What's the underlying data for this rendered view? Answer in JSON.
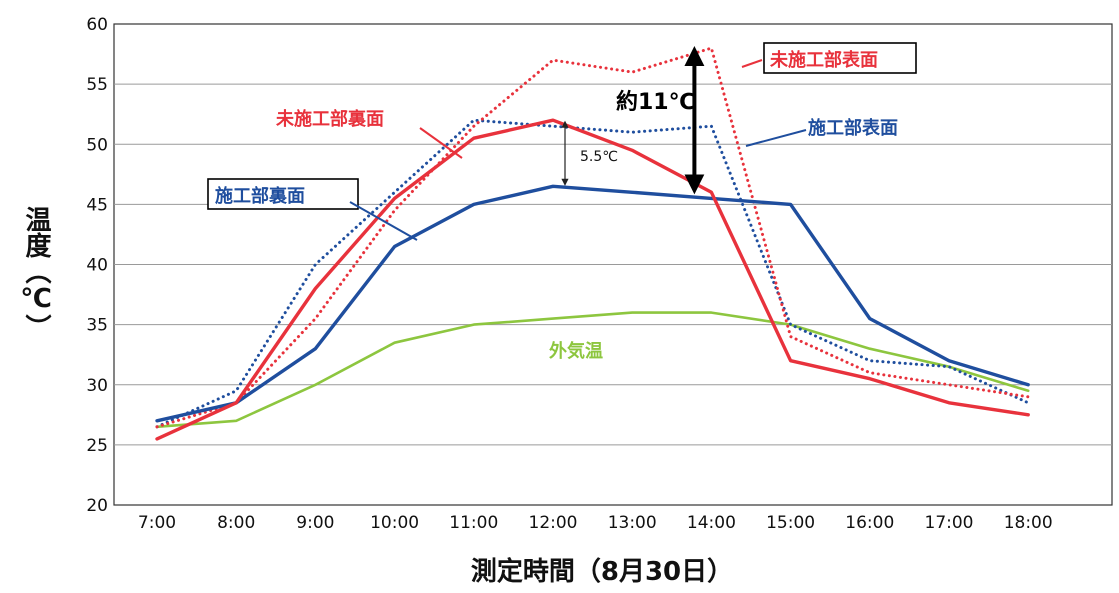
{
  "chart_data": {
    "type": "line",
    "xlabel": "測定時間（8月30日）",
    "ylabel": "温度（℃）",
    "categories": [
      "7:00",
      "8:00",
      "9:00",
      "10:00",
      "11:00",
      "12:00",
      "13:00",
      "14:00",
      "15:00",
      "16:00",
      "17:00",
      "18:00"
    ],
    "ylim": [
      20,
      60
    ],
    "yticks": [
      20,
      25,
      30,
      35,
      40,
      45,
      50,
      55,
      60
    ],
    "grid": true,
    "series": [
      {
        "name": "未施工部表面",
        "color": "#e8323c",
        "style": "dotted",
        "values": [
          26.5,
          28.5,
          35.5,
          44.5,
          51.5,
          57.0,
          56.0,
          58.0,
          34.0,
          31.0,
          30.0,
          29.0
        ]
      },
      {
        "name": "未施工部裏面",
        "color": "#e8323c",
        "style": "solid",
        "values": [
          25.5,
          28.5,
          38.0,
          45.5,
          50.5,
          52.0,
          49.5,
          46.0,
          32.0,
          30.5,
          28.5,
          27.5
        ]
      },
      {
        "name": "施工部表面",
        "color": "#1f4e9e",
        "style": "dotted",
        "values": [
          26.5,
          29.5,
          40.0,
          46.0,
          52.0,
          51.5,
          51.0,
          51.5,
          35.0,
          32.0,
          31.5,
          28.5
        ]
      },
      {
        "name": "施工部裏面",
        "color": "#1f4e9e",
        "style": "solid",
        "values": [
          27.0,
          28.5,
          33.0,
          41.5,
          45.0,
          46.5,
          46.0,
          45.5,
          45.0,
          35.5,
          32.0,
          30.0
        ]
      },
      {
        "name": "外気温",
        "color": "#8dc63f",
        "style": "solid",
        "values": [
          26.5,
          27.0,
          30.0,
          33.5,
          35.0,
          35.5,
          36.0,
          36.0,
          35.0,
          33.0,
          31.5,
          29.5
        ]
      }
    ],
    "annotations": [
      {
        "text": "5.5℃",
        "at": "12:00",
        "from": 46.5,
        "to": 52.0
      },
      {
        "text": "約11℃",
        "at": "14:00",
        "from": 46.0,
        "to": 58.0
      }
    ]
  }
}
